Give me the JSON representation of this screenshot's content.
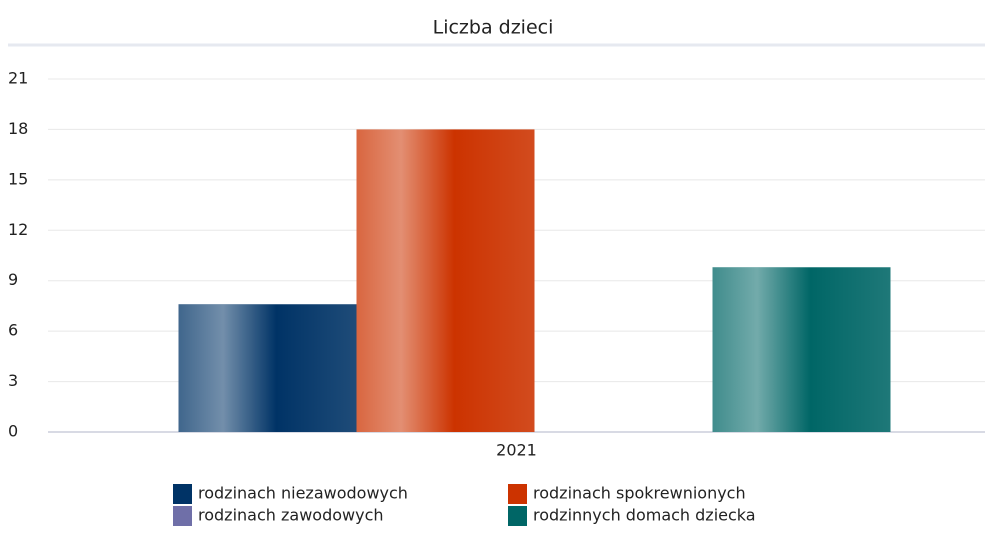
{
  "chart_data": {
    "type": "bar",
    "title": "Liczba dzieci",
    "categories": [
      "2021"
    ],
    "series": [
      {
        "name": "rodzinach niezawodowych",
        "color": "#003366",
        "values": [
          7.6
        ]
      },
      {
        "name": "rodzinach spokrewnionych",
        "color": "#cc3300",
        "values": [
          18
        ]
      },
      {
        "name": "rodzinach zawodowych",
        "color": "#6f6fa8",
        "values": [
          0
        ]
      },
      {
        "name": "rodzinnych domach dziecka",
        "color": "#006666",
        "values": [
          9.8
        ]
      }
    ],
    "ylim": [
      0,
      21
    ],
    "yticks": [
      0,
      3,
      6,
      9,
      12,
      15,
      18,
      21
    ],
    "grid": true,
    "legend": "bottom"
  }
}
